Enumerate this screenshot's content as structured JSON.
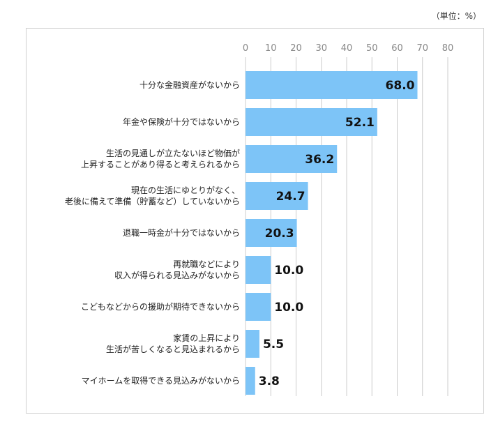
{
  "unit_label": "（単位：%）",
  "colors": {
    "bar": "#7dc4f7",
    "grid": "#cccccc"
  },
  "chart_data": {
    "type": "bar",
    "orientation": "horizontal",
    "title": "",
    "xlabel": "",
    "ylabel": "",
    "unit": "%",
    "xlim": [
      0,
      80
    ],
    "ticks": [
      0,
      10,
      20,
      30,
      40,
      50,
      60,
      70,
      80
    ],
    "grid": true,
    "categories": [
      [
        "十分な金融資産がないから"
      ],
      [
        "年金や保険が十分ではないから"
      ],
      [
        "生活の見通しが立たないほど物価が",
        "上昇することがあり得ると考えられるから"
      ],
      [
        "現在の生活にゆとりがなく、",
        "老後に備えて準備（貯蓄など）していないから"
      ],
      [
        "退職一時金が十分ではないから"
      ],
      [
        "再就職などにより",
        "収入が得られる見込みがないから"
      ],
      [
        "こどもなどからの援助が期待できないから"
      ],
      [
        "家賃の上昇により",
        "生活が苦しくなると見込まれるから"
      ],
      [
        "マイホームを取得できる見込みがないから"
      ]
    ],
    "values": [
      68.0,
      52.1,
      36.2,
      24.7,
      20.3,
      10.0,
      10.0,
      5.5,
      3.8
    ],
    "value_labels": [
      "68.0",
      "52.1",
      "36.2",
      "24.7",
      "20.3",
      "10.0",
      "10.0",
      "5.5",
      "3.8"
    ]
  }
}
